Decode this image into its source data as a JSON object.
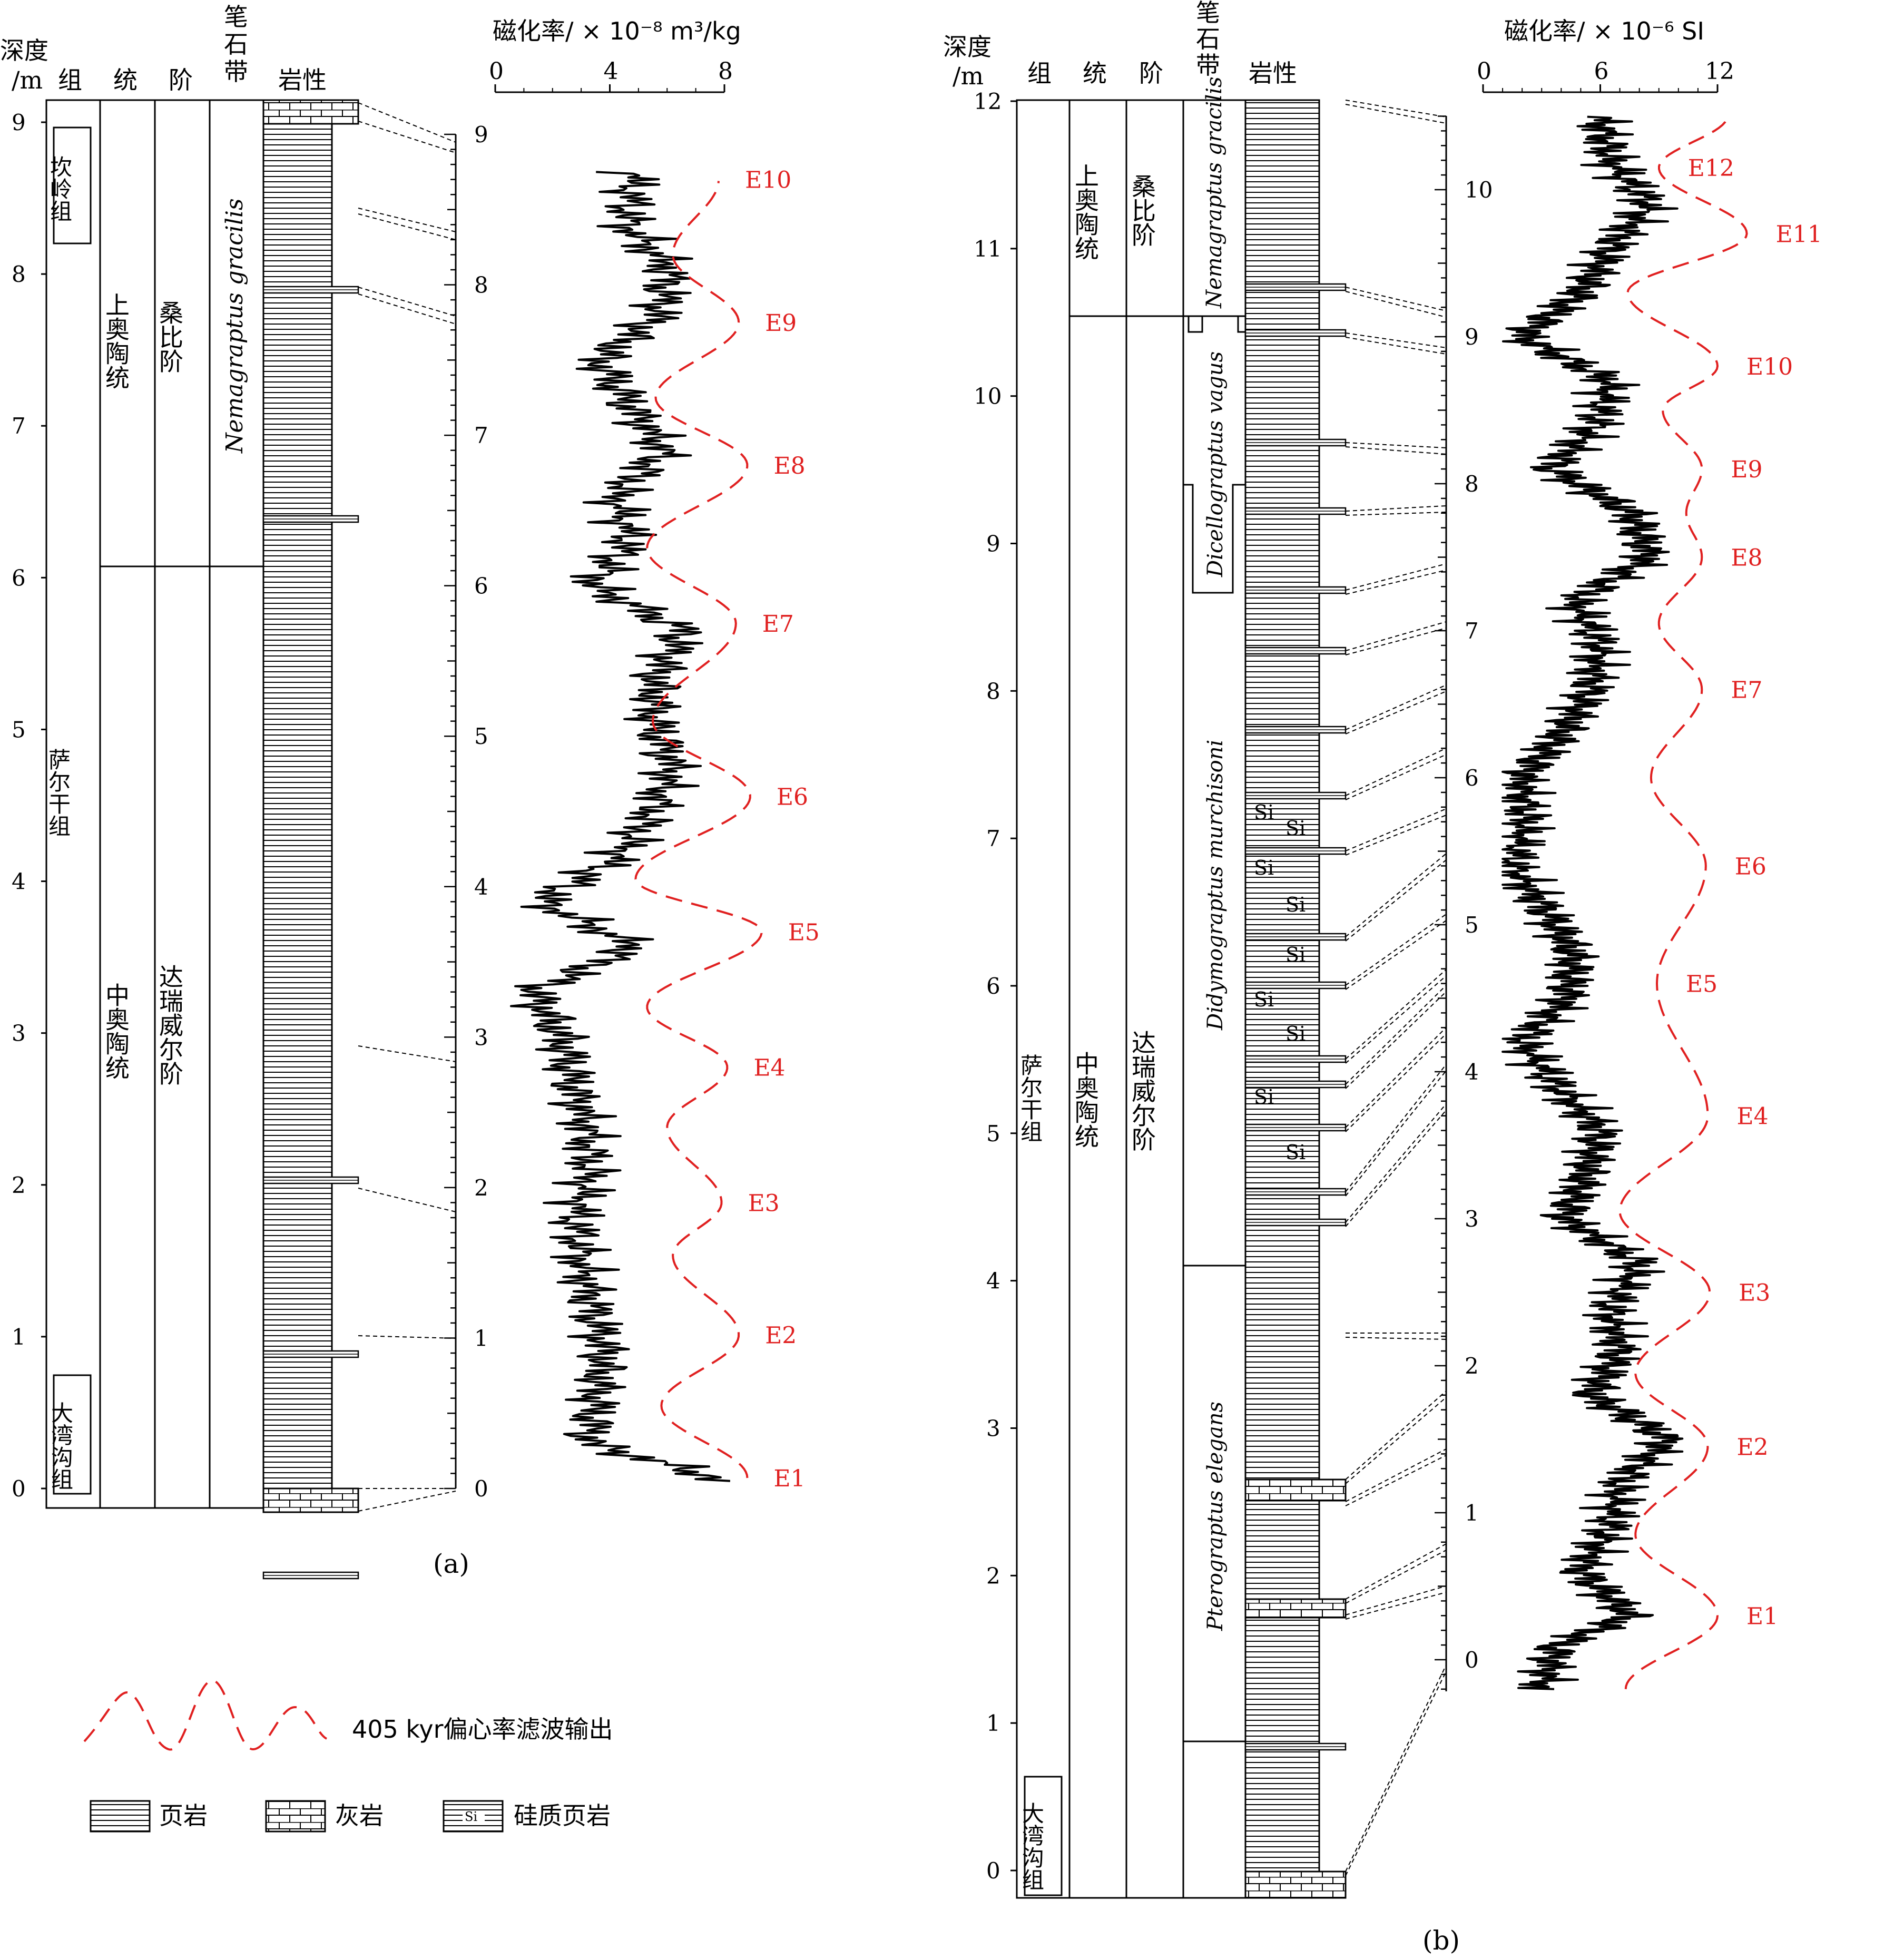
{
  "colors": {
    "red": "#e02020",
    "ink": "#000000"
  },
  "headers": {
    "depth": [
      "深度",
      "/m"
    ],
    "formation": "组",
    "series": "统",
    "stage": "阶",
    "graptolite": [
      "笔",
      "石",
      "带"
    ],
    "lithology": "岩性"
  },
  "panel_a": {
    "label": "(a)",
    "sus_axis_title": "磁化率/ × 10⁻⁸ m³/kg",
    "sus_ticks": [
      "0",
      "4",
      "8"
    ],
    "depth_ticks": [
      "0",
      "1",
      "2",
      "3",
      "4",
      "5",
      "6",
      "7",
      "8",
      "9"
    ],
    "formations": [
      {
        "name": "坎岭组"
      },
      {
        "name": "萨尔干组"
      },
      {
        "name": "大湾沟组"
      }
    ],
    "series": [
      "上奥陶统",
      "中奥陶统"
    ],
    "stages": [
      "桑比阶",
      "达瑞威尔阶"
    ],
    "zones": [
      "Nemagraptus gracilis"
    ],
    "filter_labels": [
      "E1",
      "E2",
      "E3",
      "E4",
      "E5",
      "E6",
      "E7",
      "E8",
      "E9",
      "E10"
    ]
  },
  "panel_b": {
    "label": "(b)",
    "sus_axis_title": "磁化率/ × 10⁻⁶ SI",
    "sus_ticks": [
      "0",
      "6",
      "12"
    ],
    "depth_ticks": [
      "0",
      "1",
      "2",
      "3",
      "4",
      "5",
      "6",
      "7",
      "8",
      "9",
      "10",
      "11",
      "12"
    ],
    "right_ticks": [
      "0",
      "1",
      "2",
      "3",
      "4",
      "5",
      "6",
      "7",
      "8",
      "9",
      "10"
    ],
    "formations": [
      {
        "name": "萨尔干组"
      },
      {
        "name": "大湾沟组"
      }
    ],
    "series": [
      "上奥陶统",
      "中奥陶统"
    ],
    "stages": [
      "桑比阶",
      "达瑞威尔阶"
    ],
    "zones": [
      "Nemagraptus gracilis",
      "Dicellograptus vagus",
      "Didymograptus murchisoni",
      "Pterograptus elegans"
    ],
    "si_label": "Si",
    "filter_labels": [
      "E1",
      "E2",
      "E3",
      "E4",
      "E5",
      "E6",
      "E7",
      "E8",
      "E9",
      "E10",
      "E11",
      "E12"
    ]
  },
  "legend": {
    "filter": "405 kyr偏心率滤波输出",
    "shale": "页岩",
    "limestone": "灰岩",
    "siliceous": "硅质页岩",
    "si_symbol": "Si"
  },
  "chart_data": [
    {
      "type": "line",
      "title": "",
      "xlabel": "磁化率/ × 10⁻⁸ m³/kg",
      "ylabel": "深度 /m",
      "xlim": [
        0,
        8
      ],
      "ylim": [
        0,
        9.2
      ],
      "series": [
        {
          "depth": [
            0.05,
            0.3,
            0.6,
            0.9,
            1.2,
            1.5,
            1.8,
            2.1,
            2.4,
            2.7,
            3.0,
            3.3,
            3.6,
            3.9,
            4.2,
            4.5,
            4.8,
            5.1,
            5.4,
            5.7,
            6.0,
            6.3,
            6.6,
            6.9,
            7.2,
            7.5,
            7.8,
            8.1,
            8.4,
            8.7
          ],
          "values": [
            8.1,
            3.3,
            3.5,
            3.8,
            3.4,
            3.0,
            2.8,
            3.3,
            3.2,
            2.7,
            2.3,
            1.3,
            4.9,
            1.6,
            4.3,
            5.5,
            6.2,
            5.5,
            5.6,
            6.6,
            3.4,
            4.7,
            4.2,
            5.9,
            4.7,
            3.6,
            5.7,
            6.1,
            4.6,
            4.8
          ]
        },
        {
          "name": "405 kyr偏心率滤波输出",
          "depth": [
            0.07,
            0.55,
            1.02,
            1.55,
            1.9,
            2.4,
            2.8,
            3.2,
            3.7,
            4.05,
            4.6,
            5.1,
            5.75,
            6.25,
            6.8,
            7.25,
            7.75,
            8.2,
            8.7
          ],
          "values": [
            8.8,
            5.8,
            8.5,
            6.2,
            7.9,
            6.0,
            8.1,
            5.3,
            9.3,
            4.9,
            8.9,
            5.5,
            8.4,
            5.3,
            8.8,
            5.6,
            8.5,
            6.2,
            7.8
          ]
        }
      ]
    },
    {
      "type": "line",
      "title": "",
      "xlabel": "磁化率/ × 10⁻⁶ SI",
      "ylabel": "深度 /m",
      "xlim": [
        0,
        12
      ],
      "ylim": [
        -0.2,
        10.5
      ],
      "series": [
        {
          "depth": [
            -0.2,
            0.1,
            0.3,
            0.6,
            0.9,
            1.2,
            1.5,
            1.8,
            2.1,
            2.4,
            2.7,
            3.0,
            3.3,
            3.6,
            3.9,
            4.2,
            4.5,
            4.8,
            5.1,
            5.4,
            5.7,
            6.0,
            6.3,
            6.6,
            6.9,
            7.2,
            7.5,
            7.8,
            8.1,
            8.4,
            8.7,
            9.0,
            9.3,
            9.6,
            9.9,
            10.2,
            10.5
          ],
          "values": [
            3.0,
            3.8,
            7.5,
            5.0,
            6.5,
            7.0,
            9.5,
            5.5,
            7.0,
            6.5,
            8.0,
            4.2,
            5.2,
            6.0,
            3.8,
            2.0,
            4.3,
            4.6,
            3.2,
            1.5,
            2.2,
            2.0,
            4.0,
            5.5,
            6.0,
            4.7,
            8.5,
            7.6,
            3.5,
            5.8,
            6.5,
            2.0,
            5.0,
            6.5,
            8.5,
            6.5,
            6.0
          ]
        },
        {
          "name": "405 kyr偏心率滤波输出",
          "depth": [
            -0.2,
            0.3,
            0.85,
            1.45,
            1.95,
            2.5,
            3.05,
            3.7,
            4.6,
            5.4,
            6.0,
            6.6,
            7.05,
            7.5,
            7.8,
            8.1,
            8.5,
            8.8,
            9.3,
            9.7,
            10.15,
            10.5
          ],
          "values": [
            7.3,
            12.0,
            7.8,
            11.5,
            7.8,
            11.6,
            7.0,
            11.5,
            8.9,
            11.4,
            8.6,
            11.2,
            9.0,
            11.2,
            10.4,
            11.2,
            9.2,
            12.0,
            7.4,
            13.5,
            9.0,
            12.5
          ]
        }
      ]
    }
  ]
}
